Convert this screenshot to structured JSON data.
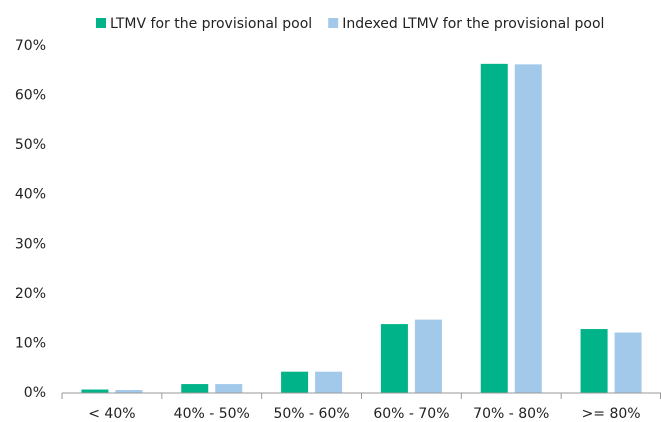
{
  "chart_data": {
    "type": "bar",
    "categories": [
      "< 40%",
      "40% - 50%",
      "50% - 60%",
      "60% - 70%",
      "70% - 80%",
      ">= 80%"
    ],
    "series": [
      {
        "name": "LTMV for the provisional pool",
        "color": "#00b388",
        "values": [
          0.7,
          1.8,
          4.3,
          13.9,
          66.4,
          12.9
        ]
      },
      {
        "name": "Indexed LTMV for the provisional pool",
        "color": "#a3c9ea",
        "values": [
          0.6,
          1.8,
          4.3,
          14.8,
          66.3,
          12.2
        ]
      }
    ],
    "ylim": [
      0,
      70
    ],
    "yticks": [
      {
        "value": 0,
        "label": "0%"
      },
      {
        "value": 10,
        "label": "10%"
      },
      {
        "value": 20,
        "label": "20%"
      },
      {
        "value": 30,
        "label": "30%"
      },
      {
        "value": 40,
        "label": "40%"
      },
      {
        "value": 50,
        "label": "50%"
      },
      {
        "value": 60,
        "label": "60%"
      },
      {
        "value": 70,
        "label": "70%"
      }
    ],
    "grid": false,
    "legend": "top"
  }
}
